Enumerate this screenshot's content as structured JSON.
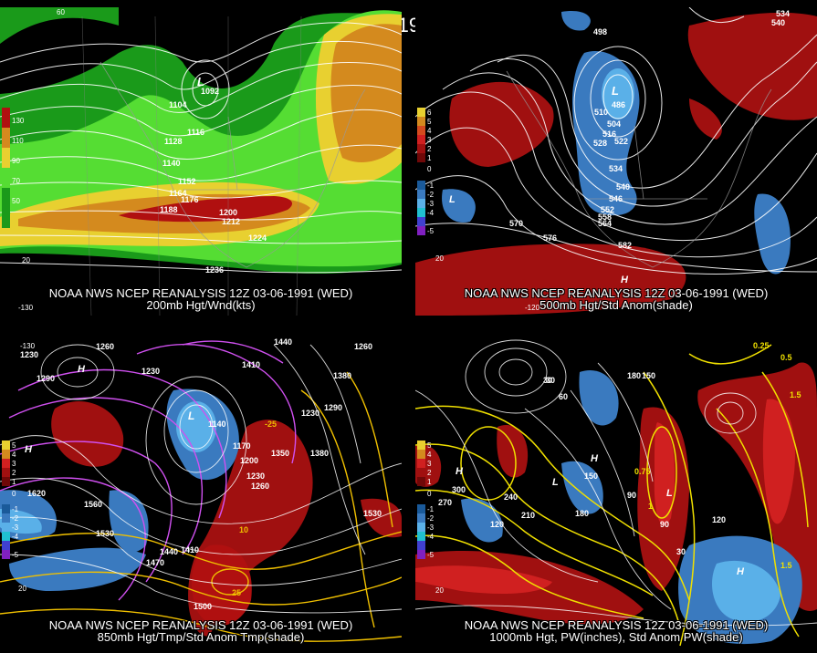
{
  "main_title": "12Z 03-06-1991 (WED)",
  "panels": [
    {
      "id": "p1",
      "caption_line1": "NOAA NWS NCEP REANALYSIS 12Z 03-06-1991 (WED)",
      "caption_line2": "200mb Hgt/Wnd(kts)",
      "legend": [
        "130",
        "110",
        "90",
        "70",
        "50"
      ],
      "labels": [
        "1104",
        "1116",
        "1128",
        "1140",
        "1152",
        "1164",
        "1176",
        "1188",
        "1200",
        "1212",
        "1224",
        "1236",
        "1092",
        "L"
      ],
      "ticks": [
        "60",
        "-130",
        "20"
      ]
    },
    {
      "id": "p2",
      "caption_line1": "NOAA NWS NCEP REANALYSIS 12Z 03-06-1991 (WED)",
      "caption_line2": "500mb Hgt/Std Anom(shade)",
      "legend": [
        "6",
        "5",
        "4",
        "3",
        "2",
        "1",
        "0",
        "-1",
        "-2",
        "-3",
        "-4",
        "-5"
      ],
      "labels": [
        "498",
        "510",
        "504",
        "516",
        "528",
        "522",
        "534",
        "540",
        "546",
        "552",
        "558",
        "564",
        "570",
        "576",
        "582",
        "534",
        "540",
        "L",
        "L",
        "H",
        "486"
      ],
      "ticks": [
        "-120",
        "20"
      ]
    },
    {
      "id": "p3",
      "caption_line1": "NOAA NWS NCEP REANALYSIS 12Z 03-06-1991 (WED)",
      "caption_line2": "850mb Hgt/Tmp/Std Anom Tmp(shade)",
      "legend": [
        "5",
        "4",
        "3",
        "2",
        "1",
        "0",
        "-1",
        "-2",
        "-3",
        "-4",
        "-5"
      ],
      "labels": [
        "1230",
        "1260",
        "1290",
        "1230",
        "1440",
        "1410",
        "1380",
        "1260",
        "1290",
        "1230",
        "1170",
        "1200",
        "1230",
        "1260",
        "1350",
        "1380",
        "1620",
        "1560",
        "1530",
        "1440",
        "1470",
        "1410",
        "1500",
        "1530",
        "1140",
        "H",
        "H",
        "L",
        "-25",
        "10",
        "25"
      ],
      "ticks": [
        "-130",
        "20"
      ]
    },
    {
      "id": "p4",
      "caption_line1": "NOAA NWS NCEP REANALYSIS 12Z 03-06-1991 (WED)",
      "caption_line2": "1000mb Hgt, PW(inches), Std Anom PW(shade)",
      "legend": [
        "5",
        "4",
        "3",
        "2",
        "1",
        "0",
        "-1",
        "-2",
        "-3",
        "-4",
        "-5"
      ],
      "labels": [
        "30",
        "60",
        "90",
        "120",
        "150",
        "180",
        "210",
        "240",
        "270",
        "300",
        "30",
        "90",
        "120",
        "150",
        "180",
        "30",
        "0.25",
        "0.5",
        "1.5",
        "0.75",
        "1",
        "1.5",
        "H",
        "H",
        "H",
        "L",
        "L"
      ],
      "ticks": [
        "20"
      ]
    }
  ],
  "colors": {
    "green_dark": "#1a9a1a",
    "green_light": "#55dd33",
    "yellow": "#e8d030",
    "orange": "#d48a1e",
    "red": "#a01010",
    "blue": "#3a7abf",
    "light_blue": "#5ab0e8",
    "magenta": "#d050f0",
    "contour_yellow": "#f0e000"
  }
}
